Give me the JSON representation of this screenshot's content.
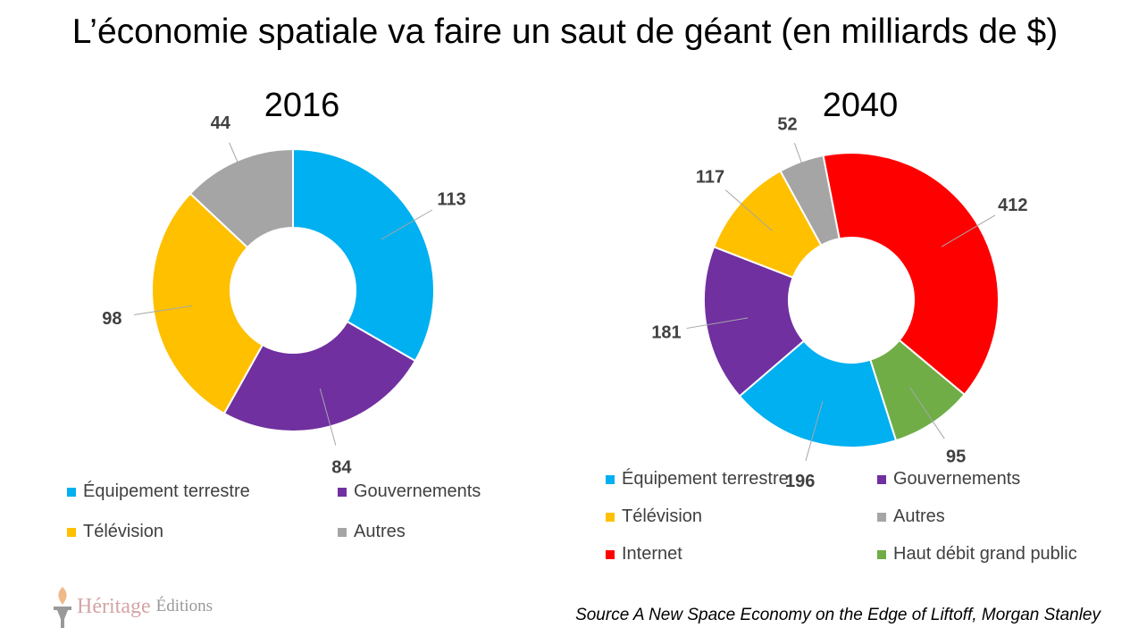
{
  "title": "L’économie spatiale va faire un saut de géant (en milliards de $)",
  "chart_data": [
    {
      "type": "pie",
      "donut": true,
      "title": "2016",
      "first_slice_angle": 0,
      "categories": [
        "Équipement terrestre",
        "Gouvernements",
        "Télévision",
        "Autres"
      ],
      "values": [
        113,
        84,
        98,
        44
      ],
      "colors": [
        "#00B0F0",
        "#7030A0",
        "#FFC000",
        "#A5A5A5"
      ],
      "legend": "bottom"
    },
    {
      "type": "pie",
      "donut": true,
      "title": "2040",
      "first_slice_angle": -11,
      "categories": [
        "Internet",
        "Haut débit grand public",
        "Équipement terrestre",
        "Gouvernements",
        "Télévision",
        "Autres"
      ],
      "values": [
        412,
        95,
        196,
        181,
        117,
        52
      ],
      "colors": [
        "#FF0000",
        "#70AD47",
        "#00B0F0",
        "#7030A0",
        "#FFC000",
        "#A5A5A5"
      ],
      "legend": "bottom",
      "legend_order": [
        "Équipement terrestre",
        "Gouvernements",
        "Télévision",
        "Autres",
        "Internet",
        "Haut débit grand public"
      ]
    }
  ],
  "source": "Source A New Space Economy on the Edge of Liftoff, Morgan Stanley",
  "logo": {
    "text1": "Héritage",
    "text2": "Éditions"
  }
}
